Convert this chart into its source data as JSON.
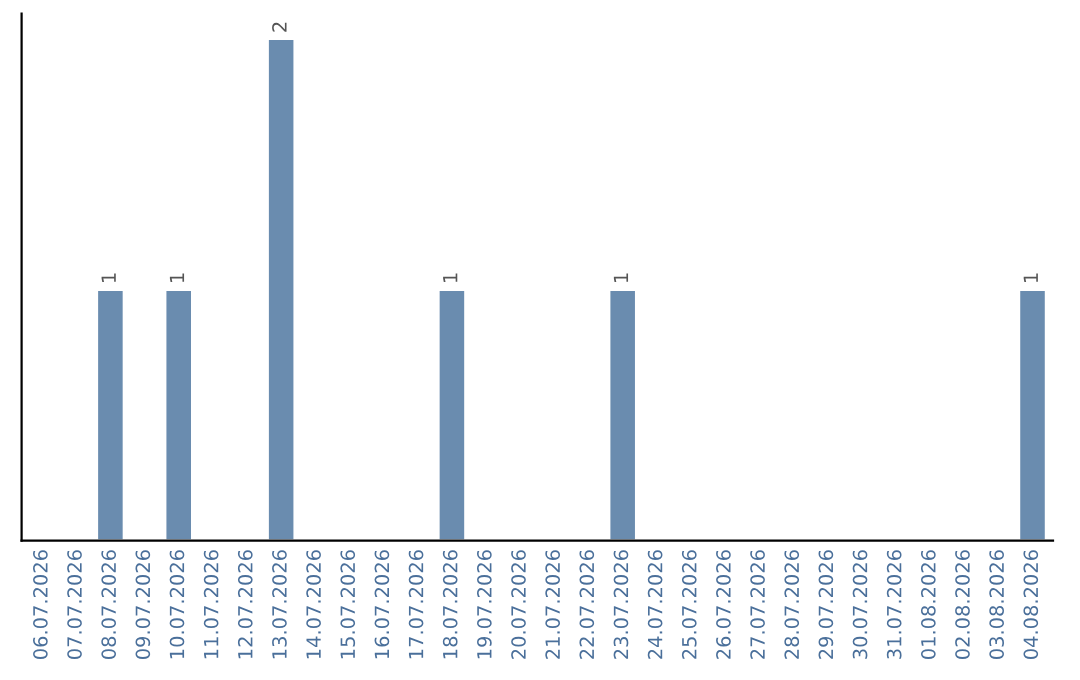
{
  "chart_data": {
    "type": "bar",
    "categories": [
      "06.07.2026",
      "07.07.2026",
      "08.07.2026",
      "09.07.2026",
      "10.07.2026",
      "11.07.2026",
      "12.07.2026",
      "13.07.2026",
      "14.07.2026",
      "15.07.2026",
      "16.07.2026",
      "17.07.2026",
      "18.07.2026",
      "19.07.2026",
      "20.07.2026",
      "21.07.2026",
      "22.07.2026",
      "23.07.2026",
      "24.07.2026",
      "25.07.2026",
      "26.07.2026",
      "27.07.2026",
      "28.07.2026",
      "29.07.2026",
      "30.07.2026",
      "31.07.2026",
      "01.08.2026",
      "02.08.2026",
      "03.08.2026",
      "04.08.2026"
    ],
    "values": [
      null,
      null,
      1,
      null,
      1,
      null,
      null,
      2,
      null,
      null,
      null,
      null,
      1,
      null,
      null,
      null,
      null,
      1,
      null,
      null,
      null,
      null,
      null,
      null,
      null,
      null,
      null,
      null,
      null,
      1
    ],
    "value_labels": [
      null,
      null,
      "1",
      null,
      "1",
      null,
      null,
      "2",
      null,
      null,
      null,
      null,
      "1",
      null,
      null,
      null,
      null,
      "1",
      null,
      null,
      null,
      null,
      null,
      null,
      null,
      null,
      null,
      null,
      null,
      "1"
    ],
    "color": "#6a8caf",
    "ylim": [
      0,
      2.1
    ],
    "tick_labels": "x",
    "grid": false,
    "legend": false
  }
}
